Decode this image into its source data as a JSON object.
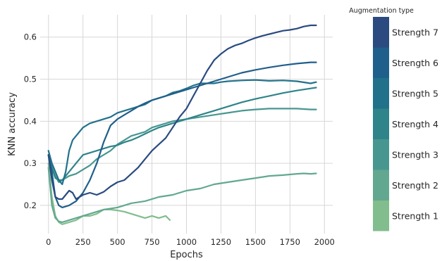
{
  "chart_data": {
    "type": "line",
    "xlabel": "Epochs",
    "ylabel": "KNN accuracy",
    "xlim": [
      -60,
      2060
    ],
    "ylim": [
      0.133,
      0.653
    ],
    "xticks": [
      0,
      250,
      500,
      750,
      1000,
      1250,
      1500,
      1750,
      2000
    ],
    "xtick_labels": [
      "0",
      "250",
      "500",
      "750",
      "1000",
      "1250",
      "1500",
      "1750",
      "2000"
    ],
    "yticks": [
      0.2,
      0.3,
      0.4,
      0.5,
      0.6
    ],
    "ytick_labels": [
      "0.2",
      "0.3",
      "0.4",
      "0.5",
      "0.6"
    ],
    "grid": true,
    "legend": {
      "title": "Augmentation type",
      "placement": "right",
      "entries": [
        "Strength 7",
        "Strength 6",
        "Strength 5",
        "Strength 4",
        "Strength 3",
        "Strength 2",
        "Strength 1"
      ],
      "colors": [
        "#2a4a80",
        "#1f5f8b",
        "#22718b",
        "#2e8489",
        "#479790",
        "#62a890",
        "#82bd8d"
      ]
    },
    "series": [
      {
        "name": "Strength 1",
        "color": "#82bd8d",
        "points": [
          [
            0,
            0.3
          ],
          [
            25,
            0.22
          ],
          [
            50,
            0.175
          ],
          [
            75,
            0.16
          ],
          [
            100,
            0.155
          ],
          [
            150,
            0.16
          ],
          [
            200,
            0.165
          ],
          [
            250,
            0.175
          ],
          [
            300,
            0.175
          ],
          [
            350,
            0.18
          ],
          [
            400,
            0.19
          ],
          [
            450,
            0.19
          ],
          [
            500,
            0.188
          ],
          [
            550,
            0.185
          ],
          [
            600,
            0.18
          ],
          [
            650,
            0.175
          ],
          [
            700,
            0.17
          ],
          [
            750,
            0.175
          ],
          [
            800,
            0.17
          ],
          [
            850,
            0.175
          ],
          [
            880,
            0.165
          ]
        ]
      },
      {
        "name": "Strength 2",
        "color": "#62a890",
        "points": [
          [
            0,
            0.29
          ],
          [
            25,
            0.2
          ],
          [
            50,
            0.17
          ],
          [
            75,
            0.162
          ],
          [
            100,
            0.16
          ],
          [
            150,
            0.165
          ],
          [
            200,
            0.17
          ],
          [
            250,
            0.175
          ],
          [
            300,
            0.18
          ],
          [
            350,
            0.185
          ],
          [
            400,
            0.19
          ],
          [
            500,
            0.195
          ],
          [
            600,
            0.205
          ],
          [
            700,
            0.21
          ],
          [
            800,
            0.22
          ],
          [
            900,
            0.225
          ],
          [
            1000,
            0.235
          ],
          [
            1100,
            0.24
          ],
          [
            1200,
            0.25
          ],
          [
            1300,
            0.255
          ],
          [
            1400,
            0.26
          ],
          [
            1500,
            0.265
          ],
          [
            1600,
            0.27
          ],
          [
            1700,
            0.272
          ],
          [
            1800,
            0.275
          ],
          [
            1850,
            0.276
          ],
          [
            1900,
            0.275
          ],
          [
            1940,
            0.276
          ]
        ]
      },
      {
        "name": "Strength 3",
        "color": "#479790",
        "points": [
          [
            0,
            0.32
          ],
          [
            25,
            0.29
          ],
          [
            50,
            0.27
          ],
          [
            75,
            0.255
          ],
          [
            100,
            0.26
          ],
          [
            125,
            0.265
          ],
          [
            150,
            0.27
          ],
          [
            200,
            0.275
          ],
          [
            250,
            0.285
          ],
          [
            300,
            0.295
          ],
          [
            350,
            0.31
          ],
          [
            400,
            0.32
          ],
          [
            450,
            0.33
          ],
          [
            500,
            0.345
          ],
          [
            550,
            0.355
          ],
          [
            600,
            0.365
          ],
          [
            650,
            0.37
          ],
          [
            700,
            0.375
          ],
          [
            750,
            0.385
          ],
          [
            800,
            0.39
          ],
          [
            850,
            0.395
          ],
          [
            900,
            0.4
          ],
          [
            1000,
            0.405
          ],
          [
            1100,
            0.41
          ],
          [
            1200,
            0.415
          ],
          [
            1300,
            0.42
          ],
          [
            1400,
            0.425
          ],
          [
            1500,
            0.428
          ],
          [
            1600,
            0.43
          ],
          [
            1700,
            0.43
          ],
          [
            1800,
            0.43
          ],
          [
            1900,
            0.428
          ],
          [
            1940,
            0.428
          ]
        ]
      },
      {
        "name": "Strength 4",
        "color": "#2e8489",
        "points": [
          [
            0,
            0.32
          ],
          [
            25,
            0.29
          ],
          [
            50,
            0.265
          ],
          [
            75,
            0.26
          ],
          [
            100,
            0.26
          ],
          [
            125,
            0.27
          ],
          [
            150,
            0.28
          ],
          [
            200,
            0.3
          ],
          [
            250,
            0.32
          ],
          [
            300,
            0.325
          ],
          [
            350,
            0.33
          ],
          [
            400,
            0.335
          ],
          [
            450,
            0.34
          ],
          [
            500,
            0.343
          ],
          [
            550,
            0.35
          ],
          [
            600,
            0.355
          ],
          [
            650,
            0.362
          ],
          [
            700,
            0.37
          ],
          [
            750,
            0.378
          ],
          [
            800,
            0.385
          ],
          [
            850,
            0.39
          ],
          [
            900,
            0.395
          ],
          [
            950,
            0.4
          ],
          [
            1000,
            0.405
          ],
          [
            1100,
            0.415
          ],
          [
            1200,
            0.425
          ],
          [
            1300,
            0.435
          ],
          [
            1400,
            0.445
          ],
          [
            1500,
            0.453
          ],
          [
            1600,
            0.46
          ],
          [
            1700,
            0.467
          ],
          [
            1800,
            0.473
          ],
          [
            1900,
            0.478
          ],
          [
            1940,
            0.48
          ]
        ]
      },
      {
        "name": "Strength 5",
        "color": "#22718b",
        "points": [
          [
            0,
            0.33
          ],
          [
            25,
            0.3
          ],
          [
            50,
            0.28
          ],
          [
            75,
            0.26
          ],
          [
            100,
            0.25
          ],
          [
            125,
            0.28
          ],
          [
            150,
            0.33
          ],
          [
            175,
            0.355
          ],
          [
            200,
            0.365
          ],
          [
            250,
            0.385
          ],
          [
            300,
            0.395
          ],
          [
            350,
            0.4
          ],
          [
            400,
            0.405
          ],
          [
            450,
            0.41
          ],
          [
            500,
            0.42
          ],
          [
            550,
            0.425
          ],
          [
            600,
            0.43
          ],
          [
            650,
            0.435
          ],
          [
            700,
            0.44
          ],
          [
            750,
            0.45
          ],
          [
            800,
            0.455
          ],
          [
            850,
            0.46
          ],
          [
            900,
            0.468
          ],
          [
            950,
            0.472
          ],
          [
            1000,
            0.478
          ],
          [
            1050,
            0.485
          ],
          [
            1100,
            0.49
          ],
          [
            1150,
            0.49
          ],
          [
            1200,
            0.49
          ],
          [
            1250,
            0.493
          ],
          [
            1300,
            0.495
          ],
          [
            1400,
            0.497
          ],
          [
            1500,
            0.498
          ],
          [
            1600,
            0.496
          ],
          [
            1700,
            0.497
          ],
          [
            1800,
            0.495
          ],
          [
            1900,
            0.49
          ],
          [
            1940,
            0.493
          ]
        ]
      },
      {
        "name": "Strength 6",
        "color": "#1f5f8b",
        "points": [
          [
            0,
            0.32
          ],
          [
            25,
            0.28
          ],
          [
            50,
            0.22
          ],
          [
            75,
            0.2
          ],
          [
            100,
            0.195
          ],
          [
            150,
            0.2
          ],
          [
            200,
            0.21
          ],
          [
            250,
            0.23
          ],
          [
            300,
            0.26
          ],
          [
            350,
            0.3
          ],
          [
            400,
            0.35
          ],
          [
            450,
            0.39
          ],
          [
            500,
            0.405
          ],
          [
            550,
            0.415
          ],
          [
            600,
            0.425
          ],
          [
            650,
            0.435
          ],
          [
            700,
            0.443
          ],
          [
            750,
            0.45
          ],
          [
            800,
            0.455
          ],
          [
            850,
            0.46
          ],
          [
            900,
            0.465
          ],
          [
            950,
            0.47
          ],
          [
            1000,
            0.475
          ],
          [
            1050,
            0.48
          ],
          [
            1100,
            0.485
          ],
          [
            1150,
            0.49
          ],
          [
            1200,
            0.495
          ],
          [
            1300,
            0.505
          ],
          [
            1400,
            0.515
          ],
          [
            1500,
            0.522
          ],
          [
            1600,
            0.528
          ],
          [
            1700,
            0.533
          ],
          [
            1800,
            0.537
          ],
          [
            1900,
            0.54
          ],
          [
            1940,
            0.54
          ]
        ]
      },
      {
        "name": "Strength 7",
        "color": "#2a4a80",
        "points": [
          [
            0,
            0.32
          ],
          [
            25,
            0.26
          ],
          [
            50,
            0.22
          ],
          [
            75,
            0.215
          ],
          [
            100,
            0.215
          ],
          [
            125,
            0.225
          ],
          [
            150,
            0.235
          ],
          [
            175,
            0.23
          ],
          [
            200,
            0.215
          ],
          [
            225,
            0.22
          ],
          [
            250,
            0.225
          ],
          [
            300,
            0.23
          ],
          [
            350,
            0.225
          ],
          [
            400,
            0.232
          ],
          [
            450,
            0.245
          ],
          [
            500,
            0.255
          ],
          [
            550,
            0.26
          ],
          [
            600,
            0.275
          ],
          [
            650,
            0.29
          ],
          [
            700,
            0.31
          ],
          [
            750,
            0.33
          ],
          [
            800,
            0.345
          ],
          [
            850,
            0.36
          ],
          [
            900,
            0.385
          ],
          [
            950,
            0.41
          ],
          [
            1000,
            0.43
          ],
          [
            1050,
            0.46
          ],
          [
            1100,
            0.49
          ],
          [
            1150,
            0.52
          ],
          [
            1200,
            0.545
          ],
          [
            1250,
            0.56
          ],
          [
            1300,
            0.572
          ],
          [
            1350,
            0.58
          ],
          [
            1400,
            0.585
          ],
          [
            1450,
            0.592
          ],
          [
            1500,
            0.598
          ],
          [
            1550,
            0.603
          ],
          [
            1600,
            0.607
          ],
          [
            1650,
            0.611
          ],
          [
            1700,
            0.615
          ],
          [
            1750,
            0.617
          ],
          [
            1800,
            0.62
          ],
          [
            1850,
            0.625
          ],
          [
            1900,
            0.628
          ],
          [
            1940,
            0.628
          ]
        ]
      }
    ]
  }
}
